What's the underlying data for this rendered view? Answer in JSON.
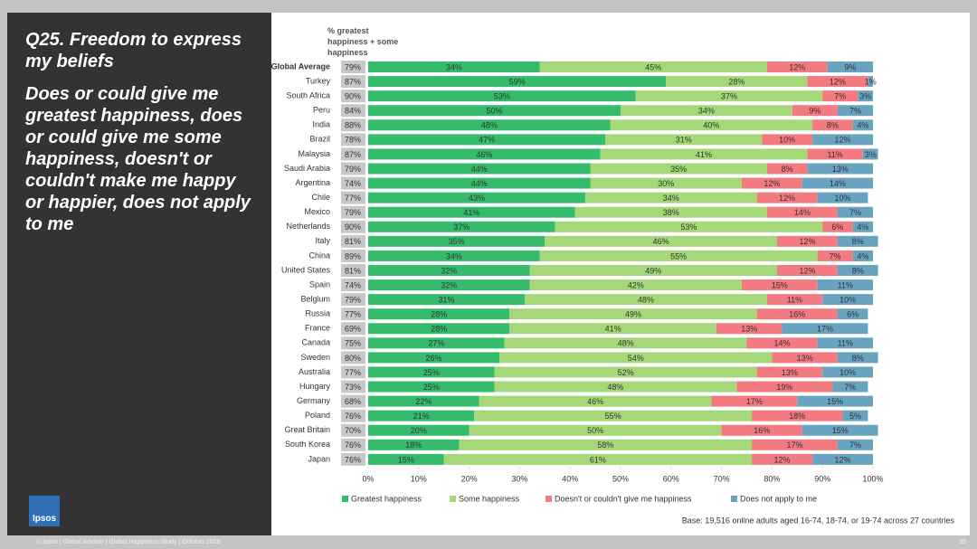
{
  "chart_data": {
    "type": "stacked_bar_horizontal",
    "slide_title": "Q25. Freedom to express my beliefs",
    "subtitle": "Does or could give me greatest happiness, does or could give me some happiness, doesn't or couldn't make me happy or happier, does not apply to me",
    "net_title": "% greatest happiness + some happiness",
    "categories": [
      "Global Average",
      "Turkey",
      "South Africa",
      "Peru",
      "India",
      "Brazil",
      "Malaysia",
      "Saudi Arabia",
      "Argentina",
      "Chile",
      "Mexico",
      "Netherlands",
      "Italy",
      "China",
      "United States",
      "Spain",
      "Belgium",
      "Russia",
      "France",
      "Canada",
      "Sweden",
      "Australia",
      "Hungary",
      "Germany",
      "Poland",
      "Great Britain",
      "South Korea",
      "Japan"
    ],
    "net_labels": [
      "79%",
      "87%",
      "90%",
      "84%",
      "88%",
      "78%",
      "87%",
      "79%",
      "74%",
      "77%",
      "79%",
      "90%",
      "81%",
      "89%",
      "81%",
      "74%",
      "79%",
      "77%",
      "69%",
      "75%",
      "80%",
      "77%",
      "73%",
      "68%",
      "76%",
      "70%",
      "76%",
      "76%"
    ],
    "series": [
      {
        "name": "Greatest happiness",
        "color": "#35bb6c",
        "values": [
          34,
          59,
          53,
          50,
          48,
          47,
          46,
          44,
          44,
          43,
          41,
          37,
          35,
          34,
          32,
          32,
          31,
          28,
          28,
          27,
          26,
          25,
          25,
          22,
          21,
          20,
          18,
          15
        ],
        "value_labels": [
          "34%",
          "59%",
          "53%",
          "50%",
          "48%",
          "47%",
          "46%",
          "44%",
          "44%",
          "43%",
          "41%",
          "37%",
          "35%",
          "34%",
          "32%",
          "32%",
          "31%",
          "28%",
          "28%",
          "27%",
          "26%",
          "25%",
          "25%",
          "22%",
          "21%",
          "20%",
          "18%",
          "15%"
        ]
      },
      {
        "name": "Some happiness",
        "color": "#a4d878",
        "values": [
          45,
          28,
          37,
          34,
          40,
          31,
          41,
          35,
          30,
          34,
          38,
          53,
          46,
          55,
          49,
          42,
          48,
          49,
          41,
          48,
          54,
          52,
          48,
          46,
          55,
          50,
          58,
          61
        ],
        "value_labels": [
          "45%",
          "28%",
          "37%",
          "34%",
          "40%",
          "31%",
          "41%",
          "35%",
          "30%",
          "34%",
          "38%",
          "53%",
          "46%",
          "55%",
          "49%",
          "42%",
          "48%",
          "49%",
          "41%",
          "48%",
          "54%",
          "52%",
          "48%",
          "46%",
          "55%",
          "50%",
          "58%",
          "61%"
        ]
      },
      {
        "name": "Doesn't or couldn't give me happiness",
        "color": "#f27a80",
        "values": [
          12,
          12,
          7,
          9,
          8,
          10,
          11,
          8,
          12,
          12,
          14,
          6,
          12,
          7,
          12,
          15,
          11,
          16,
          13,
          14,
          13,
          13,
          19,
          17,
          18,
          16,
          17,
          12
        ],
        "value_labels": [
          "12%",
          "12%",
          "7%",
          "9%",
          "8%",
          "10%",
          "11%",
          "8%",
          "12%",
          "12%",
          "14%",
          "6%",
          "12%",
          "7%",
          "12%",
          "15%",
          "11%",
          "16%",
          "13%",
          "14%",
          "13%",
          "13%",
          "19%",
          "17%",
          "18%",
          "16%",
          "17%",
          "12%"
        ]
      },
      {
        "name": "Does not apply to me",
        "color": "#68a4bf",
        "values": [
          9,
          1,
          3,
          7,
          4,
          12,
          3,
          13,
          14,
          10,
          7,
          4,
          8,
          4,
          8,
          11,
          10,
          6,
          17,
          11,
          8,
          10,
          7,
          15,
          5,
          15,
          7,
          12
        ],
        "value_labels": [
          "9%",
          "1%",
          "3%",
          "7%",
          "4%",
          "12%",
          "3%",
          "13%",
          "14%",
          "10%",
          "7%",
          "4%",
          "8%",
          "4%",
          "8%",
          "11%",
          "10%",
          "6%",
          "17%",
          "11%",
          "8%",
          "10%",
          "7%",
          "15%",
          "5%",
          "15%",
          "7%",
          "12%"
        ]
      }
    ],
    "xlim": [
      0,
      100
    ],
    "xticks": [
      {
        "value": 0,
        "label": "0%"
      },
      {
        "value": 10,
        "label": "10%"
      },
      {
        "value": 20,
        "label": "20%"
      },
      {
        "value": 30,
        "label": "30%"
      },
      {
        "value": 40,
        "label": "40%"
      },
      {
        "value": 50,
        "label": "50%"
      },
      {
        "value": 60,
        "label": "60%"
      },
      {
        "value": 70,
        "label": "70%"
      },
      {
        "value": 80,
        "label": "80%"
      },
      {
        "value": 90,
        "label": "90%"
      },
      {
        "value": 100,
        "label": "100%"
      }
    ],
    "legend": "bottom",
    "note": "Base: 19,516 online adults aged 16-74, 18-74, or 19-74 across 27 countries",
    "footer": "© Ipsos | Global Advisor | Global Happiness Study | October 2020",
    "page_number": "35",
    "logo": "Ipsos"
  }
}
